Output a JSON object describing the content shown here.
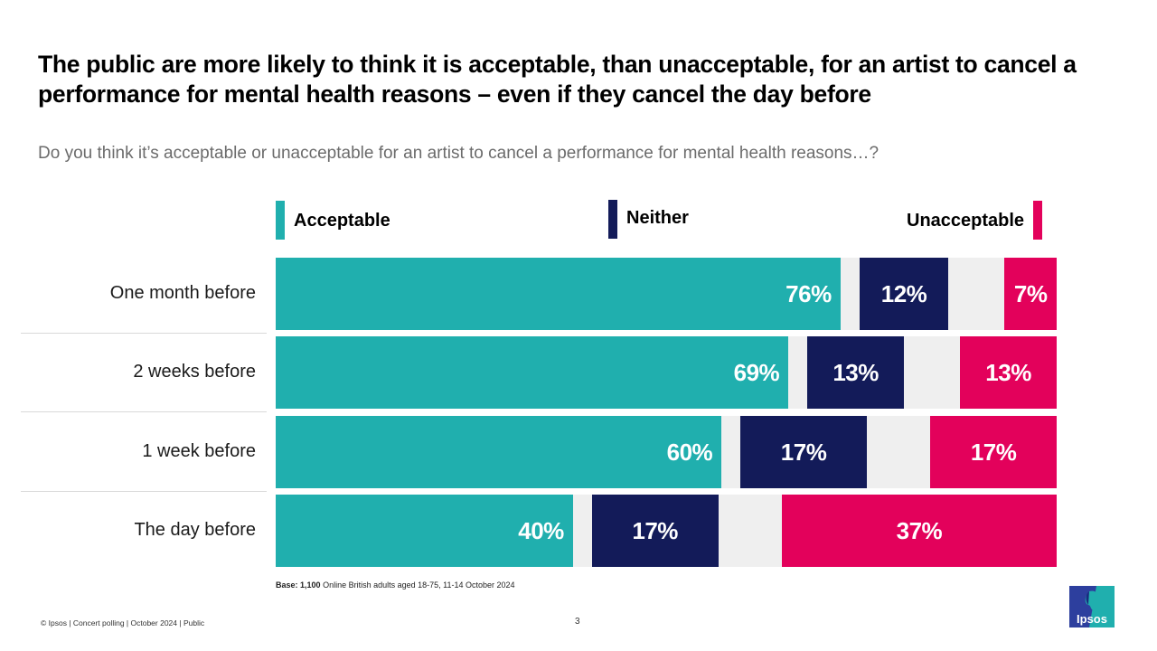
{
  "title": "The public are more likely to think it is acceptable, than unacceptable, for an artist to cancel a performance for mental health reasons – even if they cancel the day before",
  "subtitle": "Do you think it’s acceptable or unacceptable for an artist to cancel a performance for mental health reasons…?",
  "colors": {
    "acceptable": "#20AFAE",
    "neither": "#131B59",
    "unacceptable": "#E3015B",
    "track": "#EFEFEF"
  },
  "chart_data": {
    "type": "bar",
    "orientation": "horizontal",
    "layout": "split (acceptable left-aligned, neither middle, unacceptable right-aligned)",
    "title": "The public are more likely to think it is acceptable, than unacceptable, for an artist to cancel a performance for mental health reasons – even if they cancel the day before",
    "subtitle": "Do you think it’s acceptable or unacceptable for an artist to cancel a performance for mental health reasons…?",
    "categories": [
      "One month before",
      "2 weeks before",
      "1 week before",
      "The day before"
    ],
    "series": [
      {
        "name": "Acceptable",
        "values": [
          76,
          69,
          60,
          40
        ],
        "labels": [
          "76%",
          "69%",
          "60%",
          "40%"
        ]
      },
      {
        "name": "Neither",
        "values": [
          12,
          13,
          17,
          17
        ],
        "labels": [
          "12%",
          "13%",
          "17%",
          "17%"
        ]
      },
      {
        "name": "Unacceptable",
        "values": [
          7,
          13,
          17,
          37
        ],
        "labels": [
          "7%",
          "13%",
          "17%",
          "37%"
        ]
      }
    ],
    "legend": [
      "Acceptable",
      "Neither",
      "Unacceptable"
    ],
    "legend_position": "top",
    "xlim": [
      0,
      100
    ],
    "unit": "%",
    "grid": false
  },
  "legend": {
    "acceptable": "Acceptable",
    "neither": "Neither",
    "unacceptable": "Unacceptable"
  },
  "base_note": {
    "label": "Base:",
    "count": "1,100",
    "text": " Online British adults aged 18-75, 11-14 October 2024"
  },
  "footer": {
    "text": "© Ipsos | Concert polling | October 2024 | Public",
    "page_number": "3"
  },
  "logo": {
    "text": "Ipsos",
    "icon": "ipsos-logo-icon"
  }
}
